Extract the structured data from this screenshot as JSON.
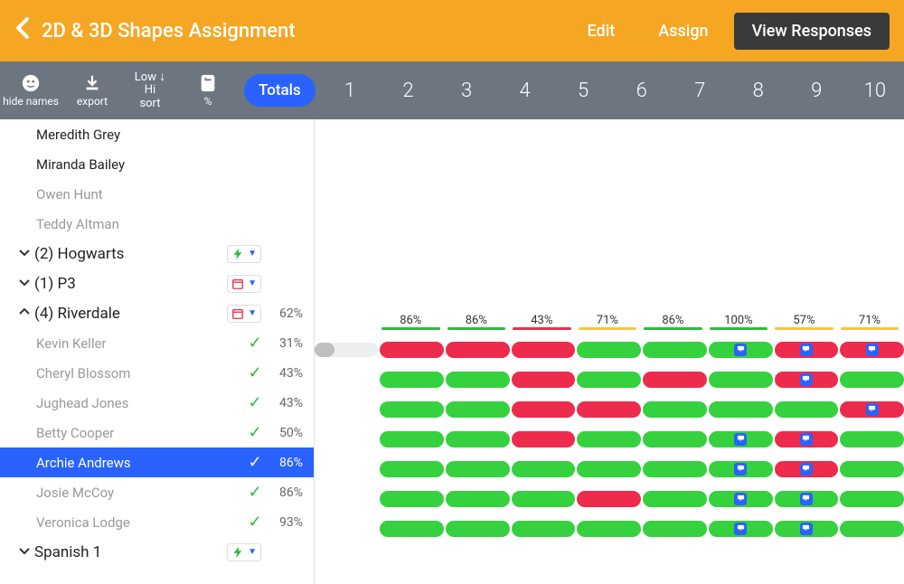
{
  "header": {
    "title": "2D & 3D Shapes Assignment",
    "edit": "Edit",
    "assign": "Assign",
    "view": "View Responses"
  },
  "toolbar": {
    "hide": "hide names",
    "export": "export",
    "sort_low": "Low",
    "sort_hi": "Hi",
    "sort": "sort",
    "percent": "%",
    "totals": "Totals",
    "cols": [
      "1",
      "2",
      "3",
      "4",
      "5",
      "6",
      "7",
      "8",
      "9",
      "10"
    ]
  },
  "colors": {
    "green": "#35d13f",
    "red": "#ed2b4c",
    "yellow": "#f5c542",
    "blue": "#2962ff",
    "header": "#f5a623",
    "toolbar": "#6c7580"
  },
  "averages": [
    {
      "v": "86%",
      "c": "g"
    },
    {
      "v": "86%",
      "c": "g"
    },
    {
      "v": "43%",
      "c": "r"
    },
    {
      "v": "71%",
      "c": "y"
    },
    {
      "v": "86%",
      "c": "g"
    },
    {
      "v": "100%",
      "c": "g"
    },
    {
      "v": "57%",
      "c": "y"
    },
    {
      "v": "71%",
      "c": "y"
    }
  ],
  "top_students": [
    "Meredith Grey",
    "Miranda Bailey",
    "Owen Hunt",
    "Teddy Altman"
  ],
  "classes": [
    {
      "name": "(2) Hogwarts",
      "expanded": false,
      "icon": "bolt",
      "icon_color": "#2dbd3a"
    },
    {
      "name": "(1) P3",
      "expanded": false,
      "icon": "cal",
      "icon_color": "#e8324a"
    },
    {
      "name": "(4) Riverdale",
      "expanded": true,
      "icon": "cal",
      "icon_color": "#e8324a",
      "pct": "62%"
    }
  ],
  "riverdale": [
    {
      "name": "Kevin Keller",
      "pct": "31%",
      "lead_fill": 0.31,
      "cells": [
        {
          "c": "r"
        },
        {
          "c": "r"
        },
        {
          "c": "r"
        },
        {
          "c": "g"
        },
        {
          "c": "g"
        },
        {
          "c": "g",
          "b": true
        },
        {
          "c": "r",
          "b": true
        },
        {
          "c": "r",
          "b": true
        }
      ]
    },
    {
      "name": "Cheryl Blossom",
      "pct": "43%",
      "cells": [
        {
          "c": "g"
        },
        {
          "c": "g"
        },
        {
          "c": "r"
        },
        {
          "c": "g"
        },
        {
          "c": "r"
        },
        {
          "c": "g"
        },
        {
          "c": "r",
          "b": true
        },
        {
          "c": "g"
        }
      ],
      "extra": true
    },
    {
      "name": "Jughead Jones",
      "pct": "43%",
      "cells": [
        {
          "c": "g"
        },
        {
          "c": "g"
        },
        {
          "c": "r"
        },
        {
          "c": "r"
        },
        {
          "c": "g"
        },
        {
          "c": "g"
        },
        {
          "c": "g"
        },
        {
          "c": "r",
          "b": true
        }
      ]
    },
    {
      "name": "Betty Cooper",
      "pct": "50%",
      "cells": [
        {
          "c": "g"
        },
        {
          "c": "g"
        },
        {
          "c": "r"
        },
        {
          "c": "g"
        },
        {
          "c": "g"
        },
        {
          "c": "g",
          "b": true
        },
        {
          "c": "r",
          "b": true
        },
        {
          "c": "g"
        }
      ]
    },
    {
      "name": "Archie Andrews",
      "pct": "86%",
      "selected": true,
      "cells": [
        {
          "c": "g"
        },
        {
          "c": "g"
        },
        {
          "c": "g"
        },
        {
          "c": "g"
        },
        {
          "c": "g"
        },
        {
          "c": "g",
          "b": true
        },
        {
          "c": "r",
          "b": true
        },
        {
          "c": "g"
        }
      ]
    },
    {
      "name": "Josie McCoy",
      "pct": "86%",
      "cells": [
        {
          "c": "g"
        },
        {
          "c": "g"
        },
        {
          "c": "g"
        },
        {
          "c": "r"
        },
        {
          "c": "g"
        },
        {
          "c": "g",
          "b": true
        },
        {
          "c": "g",
          "b": true
        },
        {
          "c": "g"
        }
      ]
    },
    {
      "name": "Veronica Lodge",
      "pct": "93%",
      "cells": [
        {
          "c": "g"
        },
        {
          "c": "g"
        },
        {
          "c": "g"
        },
        {
          "c": "g"
        },
        {
          "c": "g"
        },
        {
          "c": "g",
          "b": true
        },
        {
          "c": "g",
          "b": true
        },
        {
          "c": "g"
        }
      ]
    }
  ],
  "after_class": {
    "name": "Spanish 1",
    "icon": "bolt",
    "icon_color": "#2dbd3a"
  }
}
